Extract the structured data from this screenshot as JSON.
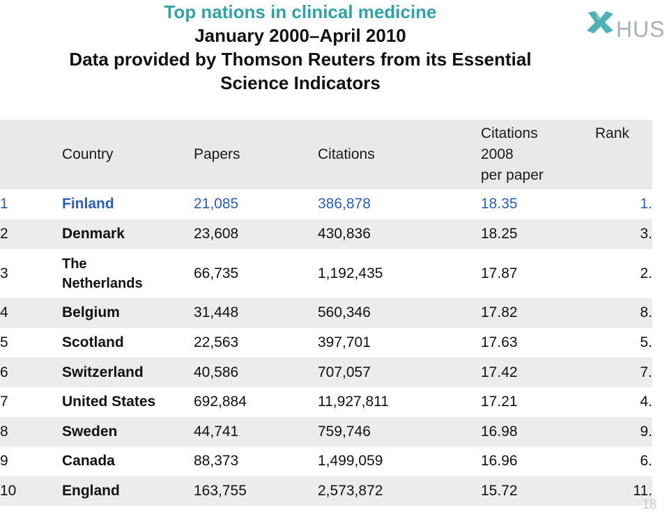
{
  "title": {
    "line1": "Top nations in clinical medicine",
    "line2": "January 2000–April 2010",
    "line3": "Data provided by Thomson Reuters from its Essential",
    "line4": "Science Indicators"
  },
  "logo": {
    "text": "HUS"
  },
  "table": {
    "headers": {
      "country": "Country",
      "papers": "Papers",
      "citations": "Citations",
      "citations_per_paper_l1": "Citations",
      "citations_per_paper_l2": "2008",
      "citations_per_paper_l3": "per paper",
      "rank": "Rank"
    },
    "rows": [
      {
        "num": "1",
        "country": "Finland",
        "papers": "21,085",
        "citations": "386,878",
        "cpp": "18.35",
        "rank": "1."
      },
      {
        "num": "2",
        "country": "Denmark",
        "papers": "23,608",
        "citations": "430,836",
        "cpp": "18.25",
        "rank": "3."
      },
      {
        "num": "3",
        "country_l1": "The",
        "country_l2": "Netherlands",
        "papers": "66,735",
        "citations": "1,192,435",
        "cpp": "17.87",
        "rank": "2."
      },
      {
        "num": "4",
        "country": "Belgium",
        "papers": "31,448",
        "citations": "560,346",
        "cpp": "17.82",
        "rank": "8."
      },
      {
        "num": "5",
        "country": "Scotland",
        "papers": "22,563",
        "citations": "397,701",
        "cpp": "17.63",
        "rank": "5."
      },
      {
        "num": "6",
        "country": "Switzerland",
        "papers": "40,586",
        "citations": "707,057",
        "cpp": "17.42",
        "rank": "7."
      },
      {
        "num": "7",
        "country": "United States",
        "papers": "692,884",
        "citations": "11,927,811",
        "cpp": "17.21",
        "rank": "4."
      },
      {
        "num": "8",
        "country": "Sweden",
        "papers": "44,741",
        "citations": "759,746",
        "cpp": "16.98",
        "rank": "9."
      },
      {
        "num": "9",
        "country": "Canada",
        "papers": "88,373",
        "citations": "1,499,059",
        "cpp": "16.96",
        "rank": "6."
      },
      {
        "num": "10",
        "country": "England",
        "papers": "163,755",
        "citations": "2,573,872",
        "cpp": "15.72",
        "rank": "11."
      }
    ]
  },
  "page_number": "18",
  "colors": {
    "title_accent": "#2fa3a8",
    "highlight_row": "#2b5fb4",
    "logo_mark": "#2fa3a8",
    "logo_text": "#a9b0b6"
  }
}
